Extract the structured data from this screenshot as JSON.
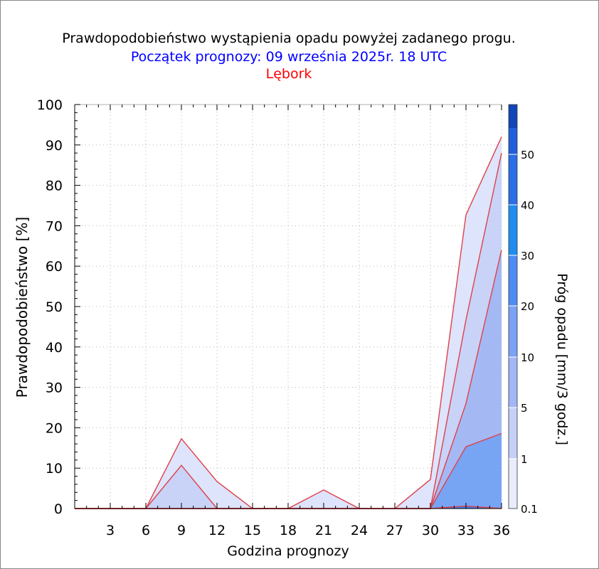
{
  "title": "Prawdopodobieństwo wystąpienia opadu powyżej zadanego progu.",
  "subtitle": "Początek prognozy: 09 września 2025r. 18 UTC",
  "location": "Lębork",
  "chart_data": {
    "type": "area",
    "title": "Prawdopodobieństwo wystąpienia opadu powyżej zadanego progu.",
    "xlabel": "Godzina prognozy",
    "ylabel": "Prawdopodobieństwo [%]",
    "xlim": [
      0,
      36
    ],
    "ylim": [
      0,
      100
    ],
    "x_ticks": [
      3,
      6,
      9,
      12,
      15,
      18,
      21,
      24,
      27,
      30,
      33,
      36
    ],
    "y_ticks": [
      0,
      10,
      20,
      30,
      40,
      50,
      60,
      70,
      80,
      90,
      100
    ],
    "x": [
      0,
      3,
      6,
      9,
      12,
      15,
      18,
      21,
      24,
      27,
      30,
      33,
      36
    ],
    "grid": true,
    "series": [
      {
        "name": "0.1",
        "color": "#dde4fb",
        "values": [
          0,
          0,
          0,
          17.3,
          6.7,
          0,
          0,
          4.6,
          0,
          0,
          7.2,
          72.7,
          92.0
        ]
      },
      {
        "name": "1",
        "color": "#c8d3f7",
        "values": [
          0,
          0,
          0,
          10.7,
          0,
          0,
          0,
          0,
          0,
          0,
          0,
          46.7,
          88.0
        ]
      },
      {
        "name": "5",
        "color": "#a4b9f3",
        "values": [
          0,
          0,
          0,
          0,
          0,
          0,
          0,
          0,
          0,
          0,
          0,
          26.0,
          64.0
        ]
      },
      {
        "name": "10",
        "color": "#78a4f4",
        "values": [
          0,
          0,
          0,
          0,
          0,
          0,
          0,
          0,
          0,
          0,
          0,
          15.3,
          18.6
        ]
      },
      {
        "name": "20",
        "color": "#3a80f2",
        "values": [
          0,
          0,
          0,
          0,
          0,
          0,
          0,
          0,
          0,
          0,
          0,
          0.6,
          0
        ]
      }
    ],
    "colorbar": {
      "label": "Próg opadu [mm/3 godz.]",
      "tick_labels": [
        "0.1",
        "1",
        "5",
        "10",
        "20",
        "30",
        "40",
        "50"
      ],
      "colors": [
        "#e8ecfc",
        "#c5d0f8",
        "#a3b7f6",
        "#7ba2f5",
        "#4d8cf4",
        "#1e8cf0",
        "#2a6ee8",
        "#1f5fdc",
        "#0f46b8"
      ]
    }
  }
}
